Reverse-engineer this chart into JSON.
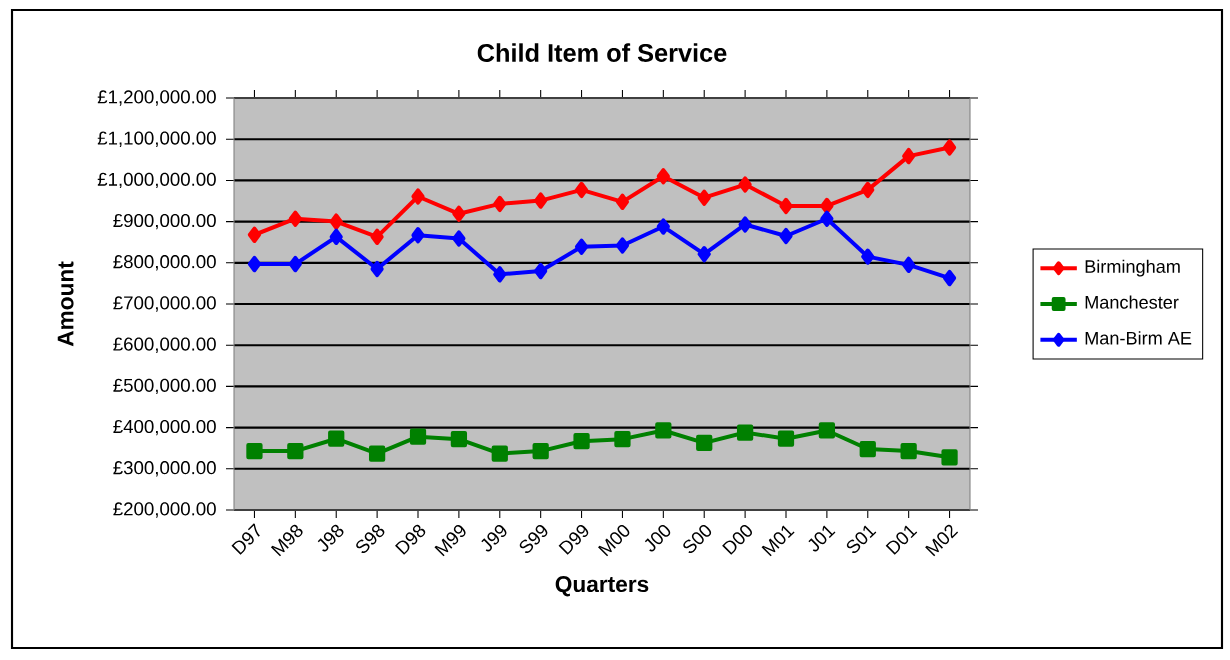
{
  "chart_data": {
    "type": "line",
    "title": "Child Item of Service",
    "xlabel": "Quarters",
    "ylabel": "Amount",
    "categories": [
      "D97",
      "M98",
      "J98",
      "S98",
      "D98",
      "M99",
      "J99",
      "S99",
      "D99",
      "M00",
      "J00",
      "S00",
      "D00",
      "M01",
      "J01",
      "S01",
      "D01",
      "M02"
    ],
    "series": [
      {
        "name": "Birmingham",
        "color": "#ff0000",
        "marker": "diamond",
        "values": [
          868000,
          907000,
          900000,
          863000,
          961000,
          919000,
          943000,
          951000,
          977000,
          948000,
          1010000,
          958000,
          990000,
          938000,
          938000,
          977000,
          1059000,
          1080000
        ]
      },
      {
        "name": "Manchester",
        "color": "#008000",
        "marker": "square",
        "values": [
          343000,
          343000,
          373000,
          337000,
          378000,
          372000,
          337000,
          343000,
          367000,
          372000,
          393000,
          363000,
          388000,
          373000,
          393000,
          348000,
          343000,
          328000
        ]
      },
      {
        "name": "Man-Birm AE",
        "color": "#0000ff",
        "marker": "diamond",
        "values": [
          797000,
          797000,
          863000,
          785000,
          867000,
          859000,
          772000,
          780000,
          839000,
          842000,
          888000,
          821000,
          893000,
          865000,
          907000,
          815000,
          795000,
          763000
        ]
      }
    ],
    "ylim": [
      200000,
      1200000
    ],
    "yticks": [
      {
        "value": 200000,
        "label": "£200,000.00"
      },
      {
        "value": 300000,
        "label": "£300,000.00"
      },
      {
        "value": 400000,
        "label": "£400,000.00"
      },
      {
        "value": 500000,
        "label": "£500,000.00"
      },
      {
        "value": 600000,
        "label": "£600,000.00"
      },
      {
        "value": 700000,
        "label": "£700,000.00"
      },
      {
        "value": 800000,
        "label": "£800,000.00"
      },
      {
        "value": 900000,
        "label": "£900,000.00"
      },
      {
        "value": 1000000,
        "label": "£1,000,000.00"
      },
      {
        "value": 1100000,
        "label": "£1,100,000.00"
      },
      {
        "value": 1200000,
        "label": "£1,200,000.00"
      }
    ],
    "grid": "y",
    "legend": "right",
    "line_style": "solid"
  }
}
